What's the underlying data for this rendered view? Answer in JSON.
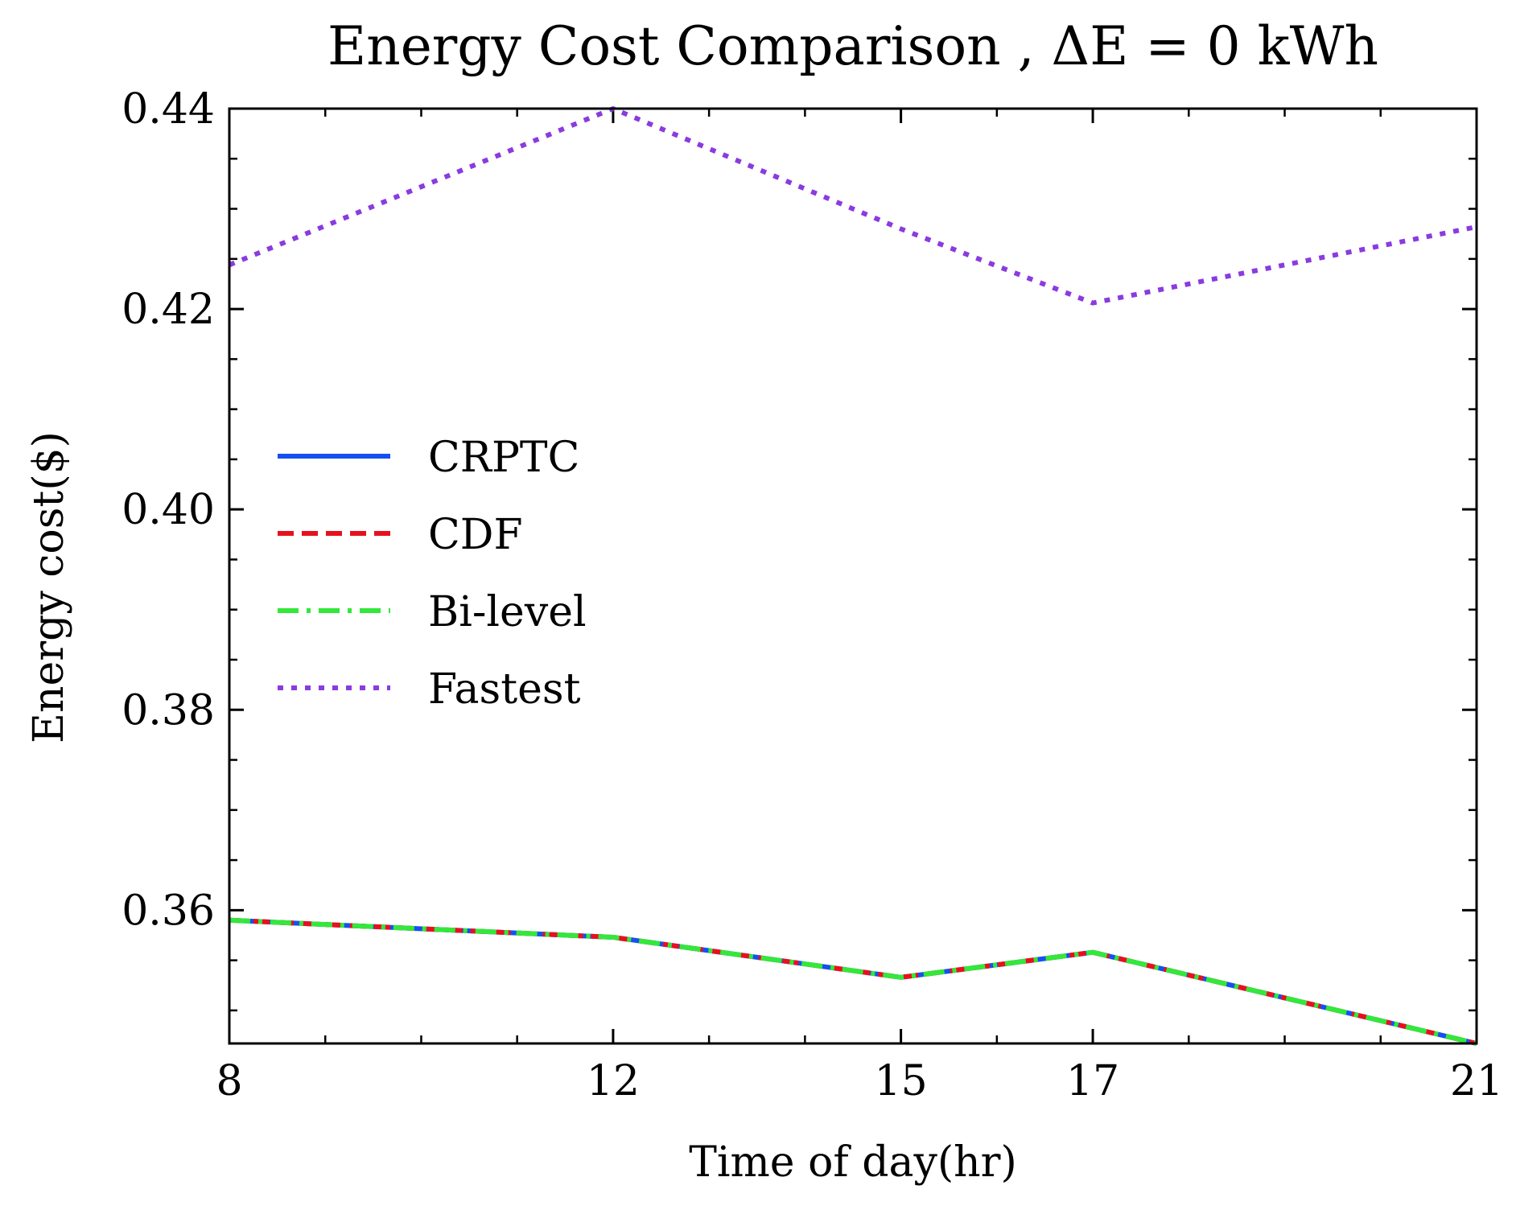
{
  "chart_data": {
    "type": "line",
    "title": "Energy Cost Comparison , ΔE = 0 kWh",
    "xlabel": "Time of day(hr)",
    "ylabel": "Energy cost($)",
    "x": [
      8,
      12,
      15,
      17,
      21
    ],
    "x_tick_labels": [
      "8",
      "12",
      "15",
      "17",
      "21"
    ],
    "xlim": [
      8,
      21
    ],
    "ylim": [
      0.3467,
      0.44
    ],
    "y_ticks": [
      0.36,
      0.38,
      0.4,
      0.42,
      0.44
    ],
    "y_tick_labels": [
      "0.36",
      "0.38",
      "0.40",
      "0.42",
      "0.44"
    ],
    "legend_position": "center-left",
    "series": [
      {
        "name": "CRPTC",
        "color": "#1550f0",
        "style": "solid",
        "values": [
          0.359,
          0.3573,
          0.3533,
          0.3558,
          0.3467
        ]
      },
      {
        "name": "CDF",
        "color": "#e8101e",
        "style": "dashed",
        "values": [
          0.359,
          0.3573,
          0.3533,
          0.3558,
          0.3467
        ]
      },
      {
        "name": "Bi-level",
        "color": "#33e83a",
        "style": "dashdot",
        "values": [
          0.359,
          0.3573,
          0.3533,
          0.3558,
          0.3467
        ]
      },
      {
        "name": "Fastest",
        "color": "#8a3be0",
        "style": "dotted",
        "values": [
          0.4244,
          0.44,
          0.428,
          0.4206,
          0.4282
        ]
      }
    ]
  }
}
